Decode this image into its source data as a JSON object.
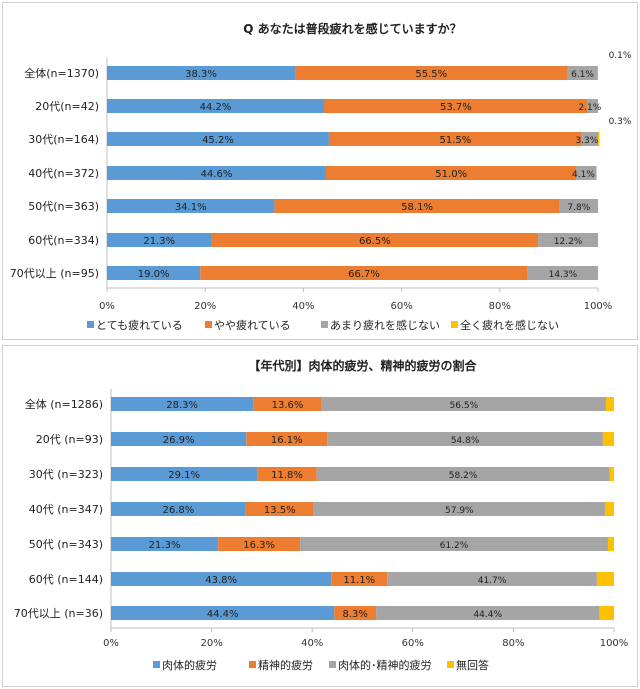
{
  "chart_data": [
    {
      "type": "bar",
      "stacked": true,
      "orientation": "horizontal",
      "title": "Q あなたは普段疲れを感じていますか？",
      "categories": [
        "全体(n=1370)",
        "20代(n=42)",
        "30代(n=164)",
        "40代(n=372)",
        "50代(n=363)",
        "60代(n=334)",
        "70代以上 (n=95)"
      ],
      "series": [
        {
          "name": "とても疲れている",
          "color": "#5b9bd5",
          "values": [
            38.3,
            44.2,
            45.2,
            44.6,
            34.1,
            21.3,
            19.0
          ],
          "labels": [
            "38.3%",
            "44.2%",
            "45.2%",
            "44.6%",
            "34.1%",
            "21.3%",
            "19.0%"
          ]
        },
        {
          "name": "やや疲れている",
          "color": "#ed7d31",
          "values": [
            55.5,
            53.7,
            51.5,
            51.0,
            58.1,
            66.5,
            66.7
          ],
          "labels": [
            "55.5%",
            "53.7%",
            "51.5%",
            "51.0%",
            "58.1%",
            "66.5%",
            "66.7%"
          ]
        },
        {
          "name": "あまり疲れを感じない",
          "color": "#a5a5a5",
          "values": [
            6.1,
            2.1,
            3.3,
            4.1,
            7.8,
            12.2,
            14.3
          ],
          "labels": [
            "6.1%",
            "2.1%",
            "3.3%",
            "4.1%",
            "7.8%",
            "12.2%",
            "14.3%"
          ]
        },
        {
          "name": "全く疲れを感じない",
          "color": "#ffc000",
          "values": [
            0.1,
            0,
            0.3,
            0,
            0,
            0,
            0
          ],
          "labels": [
            "0.1%",
            "",
            "0.3%",
            "",
            "",
            "",
            ""
          ]
        }
      ],
      "xticks": [
        "0%",
        "20%",
        "40%",
        "60%",
        "80%",
        "100%"
      ],
      "xlim": [
        0,
        100
      ],
      "legend": "bottom"
    },
    {
      "type": "bar",
      "stacked": true,
      "orientation": "horizontal",
      "title": "【年代別】肉体的疲労、精神的疲労の割合",
      "categories": [
        "全体 (n=1286)",
        "20代 (n=93)",
        "30代 (n=323)",
        "40代 (n=347)",
        "50代 (n=343)",
        "60代 (n=144)",
        "70代以上 (n=36)"
      ],
      "series": [
        {
          "name": "肉体的疲労",
          "color": "#5b9bd5",
          "values": [
            28.3,
            26.9,
            29.1,
            26.8,
            21.3,
            43.8,
            44.4
          ],
          "labels": [
            "28.3%",
            "26.9%",
            "29.1%",
            "26.8%",
            "21.3%",
            "43.8%",
            "44.4%"
          ]
        },
        {
          "name": "精神的疲労",
          "color": "#ed7d31",
          "values": [
            13.6,
            16.1,
            11.8,
            13.5,
            16.3,
            11.1,
            8.3
          ],
          "labels": [
            "13.6%",
            "16.1%",
            "11.8%",
            "13.5%",
            "16.3%",
            "11.1%",
            "8.3%"
          ]
        },
        {
          "name": "肉体的･精神的疲労",
          "color": "#a5a5a5",
          "values": [
            56.5,
            54.8,
            58.2,
            57.9,
            61.2,
            41.7,
            44.4
          ],
          "labels": [
            "56.5%",
            "54.8%",
            "58.2%",
            "57.9%",
            "61.2%",
            "41.7%",
            "44.4%"
          ]
        },
        {
          "name": "無回答",
          "color": "#ffc000",
          "values": [
            1.6,
            2.2,
            0.9,
            1.8,
            1.2,
            3.4,
            2.9
          ],
          "labels": [
            "",
            "",
            "",
            "",
            "",
            "",
            ""
          ]
        }
      ],
      "xticks": [
        "0%",
        "20%",
        "40%",
        "60%",
        "80%",
        "100%"
      ],
      "xlim": [
        0,
        100
      ],
      "legend": "bottom"
    }
  ]
}
